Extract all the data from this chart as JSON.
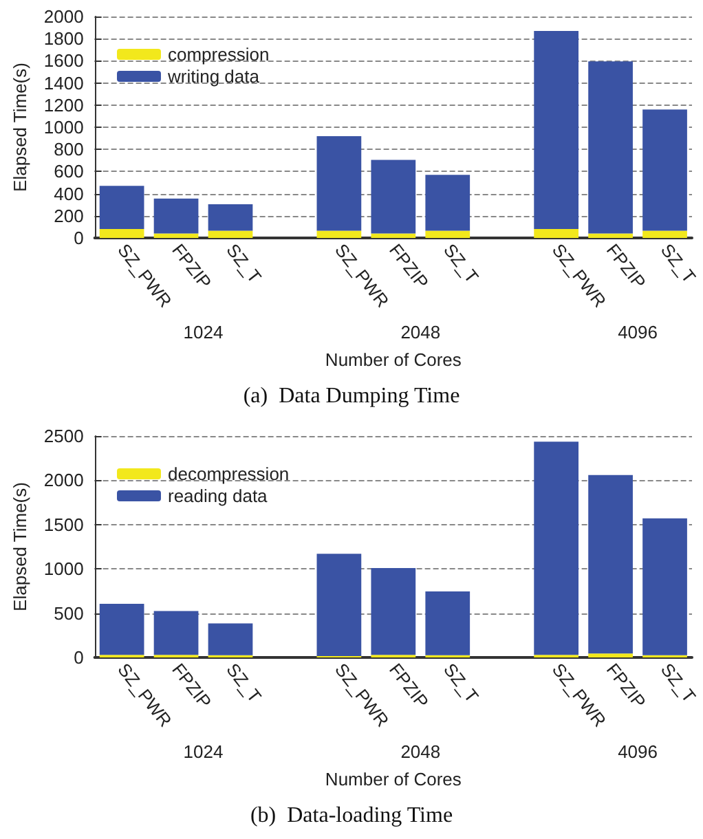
{
  "chart_data": [
    {
      "type": "bar",
      "title": "(a)  Data Dumping Time",
      "xlabel": "Number of Cores",
      "ylabel": "Elapsed Time(s)",
      "categories": [
        "SZ_PWR",
        "FPZIP",
        "SZ_T",
        null,
        "SZ_PWR",
        "FPZIP",
        "SZ_T",
        null,
        "SZ_PWR",
        "FPZIP",
        "SZ_T"
      ],
      "series": [
        {
          "name": "compression",
          "color": "#f2e81c",
          "values": [
            80,
            40,
            65,
            null,
            65,
            40,
            65,
            null,
            80,
            40,
            65
          ]
        },
        {
          "name": "writing data",
          "color": "#3a53a4",
          "values": [
            390,
            315,
            240,
            null,
            855,
            665,
            505,
            null,
            1790,
            1555,
            1095
          ]
        }
      ],
      "stacked": true,
      "ylim": [
        0,
        2000
      ],
      "yticks": [
        0,
        200,
        400,
        600,
        800,
        1000,
        1200,
        1400,
        1600,
        1800,
        2000
      ],
      "grid": "y",
      "legend": "top left",
      "annotations": [
        "1024",
        "2048",
        "4096"
      ]
    },
    {
      "type": "bar",
      "title": "(b)  Data-loading Time",
      "xlabel": "Number of Cores",
      "ylabel": "Elapsed Time(s)",
      "categories": [
        "SZ_PWR",
        "FPZIP",
        "SZ_T",
        null,
        "SZ_PWR",
        "FPZIP",
        "SZ_T",
        null,
        "SZ_PWR",
        "FPZIP",
        "SZ_T"
      ],
      "series": [
        {
          "name": "decompression",
          "color": "#f2e81c",
          "values": [
            30,
            30,
            25,
            null,
            15,
            30,
            25,
            null,
            30,
            45,
            25
          ]
        },
        {
          "name": "reading data",
          "color": "#3a53a4",
          "values": [
            575,
            495,
            360,
            null,
            1155,
            980,
            720,
            null,
            2405,
            2015,
            1545
          ]
        }
      ],
      "stacked": true,
      "ylim": [
        0,
        2500
      ],
      "yticks": [
        0,
        500,
        1000,
        1500,
        2000,
        2500
      ],
      "grid": "y",
      "legend": "top left",
      "annotations": [
        "1024",
        "2048",
        "4096"
      ]
    }
  ]
}
